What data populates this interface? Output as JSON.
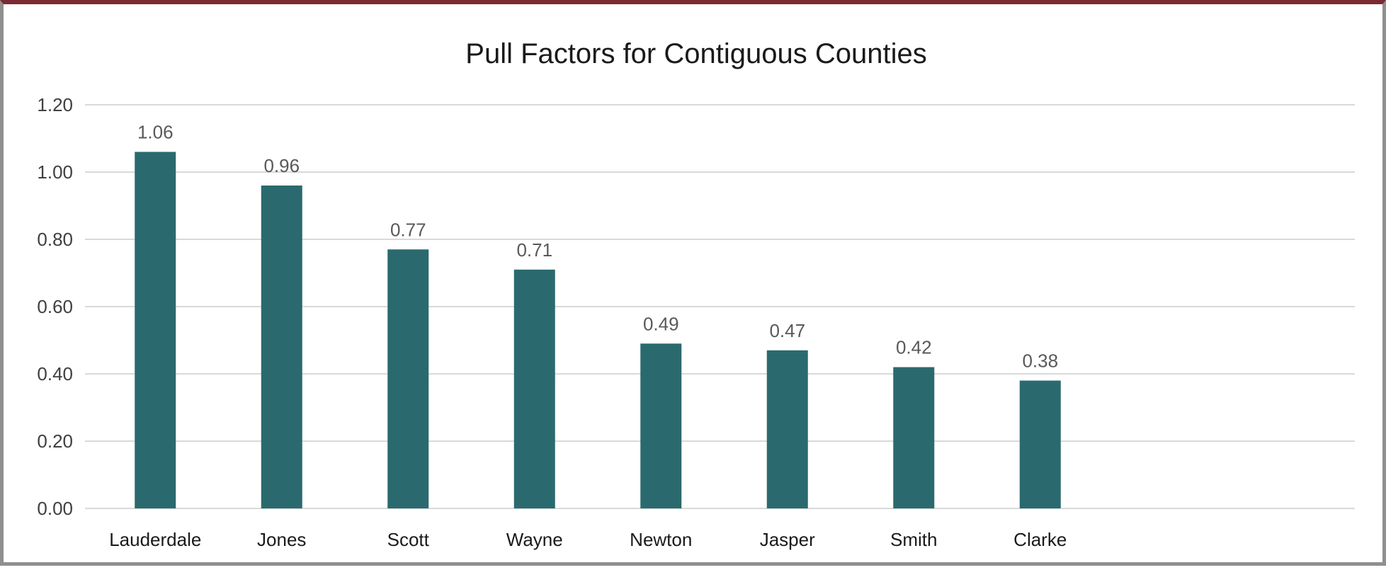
{
  "chart_data": {
    "type": "bar",
    "title": "Pull Factors for Contiguous Counties",
    "categories": [
      "Lauderdale",
      "Jones",
      "Scott",
      "Wayne",
      "Newton",
      "Jasper",
      "Smith",
      "Clarke"
    ],
    "values": [
      1.06,
      0.96,
      0.77,
      0.71,
      0.49,
      0.47,
      0.42,
      0.38
    ],
    "data_labels": [
      "1.06",
      "0.96",
      "0.77",
      "0.71",
      "0.49",
      "0.47",
      "0.42",
      "0.38"
    ],
    "yticks": [
      "0.00",
      "0.20",
      "0.40",
      "0.60",
      "0.80",
      "1.00",
      "1.20"
    ],
    "ylim": [
      0,
      1.2
    ],
    "grid": true,
    "legend": "none",
    "colors": {
      "bar": "#2a6a6e",
      "grid": "#d9d9d9",
      "frame_top": "#7b2a33"
    }
  }
}
